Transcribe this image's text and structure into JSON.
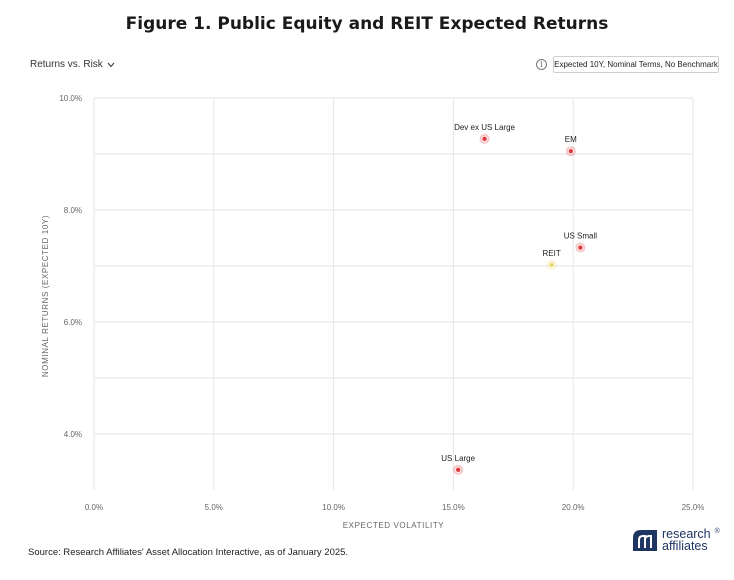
{
  "title": "Figure 1. Public Equity and REIT Expected Returns",
  "view_selector": {
    "label": "Returns vs. Risk"
  },
  "icons": {
    "dropdown": "chevron-down-icon",
    "info": "info-icon",
    "logo": "research-affiliates-logo"
  },
  "settings_label": "Expected 10Y, Nominal Terms, No Benchmark",
  "source": "Source: Research Affiliates' Asset Allocation Interactive, as of January 2025.",
  "logo": {
    "line1": "research",
    "line2": "affiliates",
    "mark": "®",
    "color": "#1f3562"
  },
  "chart_data": {
    "type": "scatter",
    "xlabel": "EXPECTED VOLATILITY",
    "ylabel": "NOMINAL RETURNS (EXPECTED 10Y)",
    "xlim": [
      0,
      25
    ],
    "ylim": [
      3,
      10
    ],
    "x_ticks": [
      0,
      5,
      10,
      15,
      20,
      25
    ],
    "x_tick_labels": [
      "0.0%",
      "5.0%",
      "10.0%",
      "15.0%",
      "20.0%",
      "25.0%"
    ],
    "y_ticks": [
      4,
      6,
      8,
      10
    ],
    "y_tick_labels": [
      "4.0%",
      "6.0%",
      "8.0%",
      "10.0%"
    ],
    "grid": true,
    "points": [
      {
        "label": "Dev ex US Large",
        "x": 16.3,
        "y": 9.27,
        "color": "#e03a3e"
      },
      {
        "label": "EM",
        "x": 19.9,
        "y": 9.05,
        "color": "#e03a3e"
      },
      {
        "label": "US Small",
        "x": 20.3,
        "y": 7.33,
        "color": "#e03a3e"
      },
      {
        "label": "REIT",
        "x": 19.1,
        "y": 7.02,
        "color": "#e8d86a"
      },
      {
        "label": "US Large",
        "x": 15.2,
        "y": 3.36,
        "color": "#e03a3e"
      }
    ]
  }
}
